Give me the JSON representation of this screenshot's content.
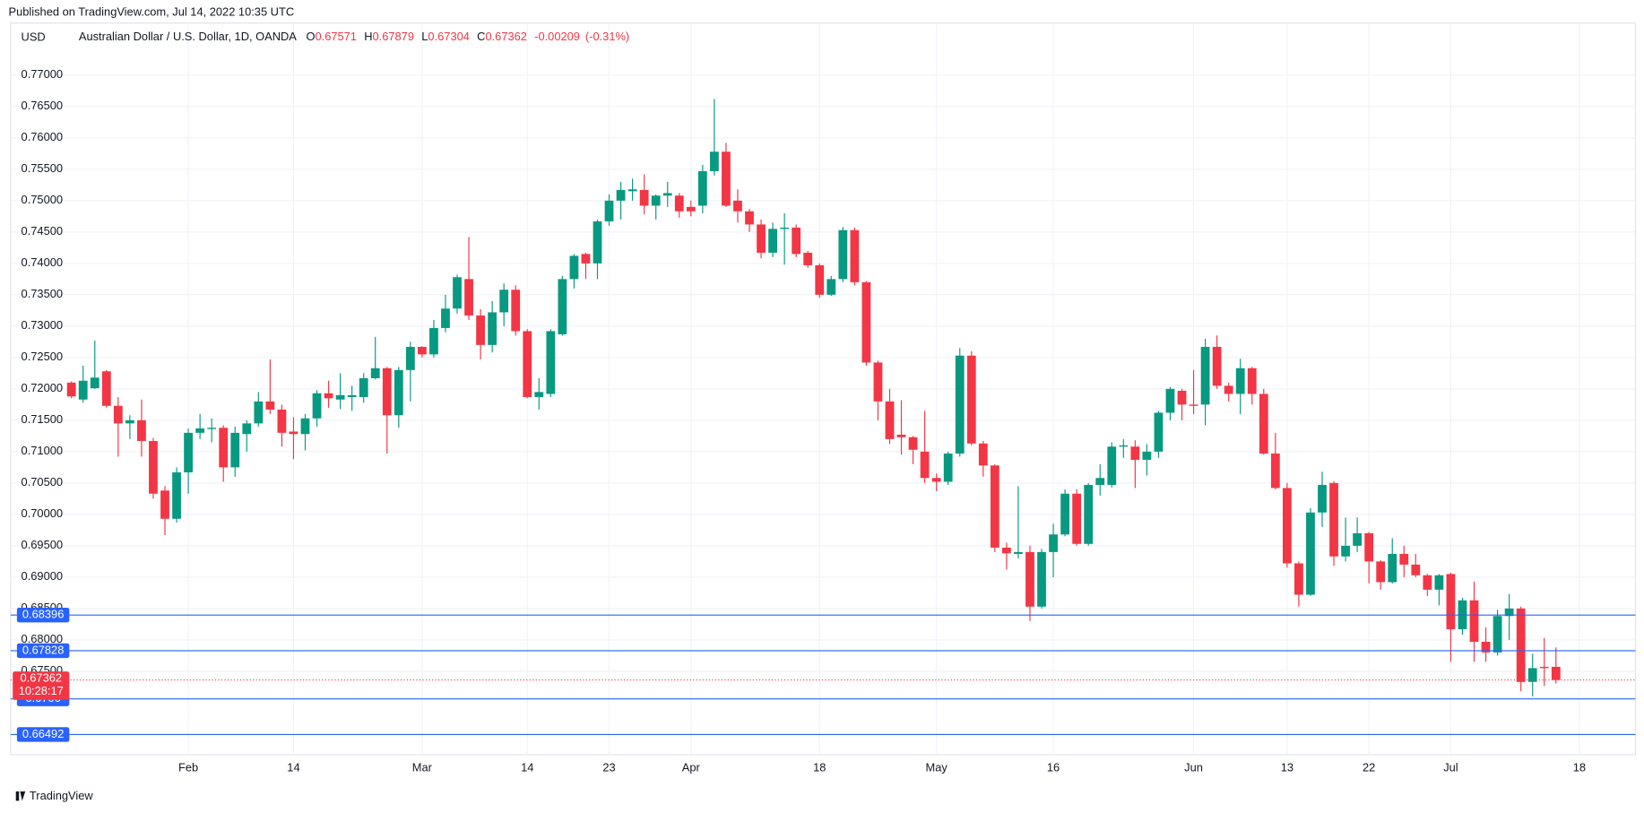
{
  "published": "Published on TradingView.com, Jul 14, 2022 10:35 UTC",
  "chart_data": {
    "type": "candlestick",
    "currency": "USD",
    "title": "Australian Dollar / U.S. Dollar, 1D, OANDA",
    "legend": {
      "open_label": "O",
      "high_label": "H",
      "low_label": "L",
      "close_label": "C",
      "change": "-0.00209",
      "change_pct": "(-0.31%)"
    },
    "countdown": "10:28:17",
    "up_color": "#089981",
    "down_color": "#f23645",
    "level_color": "#2962ff",
    "grid": true,
    "open": [
      0.721,
      0.7183,
      0.7201,
      0.7228,
      0.7173,
      0.7145,
      0.715,
      0.7117,
      0.7038,
      0.6993,
      0.7067,
      0.713,
      0.7136,
      0.7138,
      0.7075,
      0.7128,
      0.7145,
      0.718,
      0.7167,
      0.7132,
      0.7128,
      0.7153,
      0.7193,
      0.7183,
      0.7187,
      0.7187,
      0.7217,
      0.7233,
      0.7158,
      0.723,
      0.7267,
      0.7255,
      0.7297,
      0.7328,
      0.7375,
      0.7317,
      0.727,
      0.7322,
      0.7358,
      0.7292,
      0.7187,
      0.7192,
      0.7287,
      0.7375,
      0.7415,
      0.74,
      0.7467,
      0.75,
      0.7515,
      0.7517,
      0.7492,
      0.7508,
      0.7508,
      0.749,
      0.7492,
      0.7547,
      0.7578,
      0.75,
      0.7483,
      0.7462,
      0.7417,
      0.7455,
      0.7457,
      0.7417,
      0.7397,
      0.735,
      0.7375,
      0.7453,
      0.737,
      0.7242,
      0.718,
      0.7127,
      0.7123,
      0.71,
      0.7058,
      0.7052,
      0.7097,
      0.7253,
      0.7113,
      0.7078,
      0.6947,
      0.6937,
      0.694,
      0.6853,
      0.694,
      0.6968,
      0.7033,
      0.6953,
      0.7047,
      0.7047,
      0.7108,
      0.7108,
      0.7087,
      0.71,
      0.7162,
      0.7197,
      0.7175,
      0.7175,
      0.7267,
      0.7205,
      0.7192,
      0.7233,
      0.7192,
      0.7097,
      0.7042,
      0.6922,
      0.6872,
      0.7003,
      0.705,
      0.6933,
      0.695,
      0.697,
      0.6925,
      0.6892,
      0.6937,
      0.692,
      0.6903,
      0.688,
      0.6905,
      0.6817,
      0.6863,
      0.6797,
      0.678,
      0.6838,
      0.685,
      0.6733,
      0.6757,
      0.67571
    ],
    "high": [
      0.7212,
      0.7237,
      0.7277,
      0.723,
      0.7187,
      0.7158,
      0.7183,
      0.7122,
      0.7045,
      0.7075,
      0.7137,
      0.716,
      0.7153,
      0.7142,
      0.714,
      0.715,
      0.7195,
      0.7247,
      0.7175,
      0.7155,
      0.716,
      0.7198,
      0.7213,
      0.7225,
      0.7205,
      0.7225,
      0.7283,
      0.7235,
      0.7235,
      0.7275,
      0.7268,
      0.731,
      0.735,
      0.7382,
      0.7442,
      0.7327,
      0.734,
      0.7368,
      0.7365,
      0.7295,
      0.7217,
      0.7295,
      0.738,
      0.7415,
      0.7417,
      0.747,
      0.751,
      0.753,
      0.7535,
      0.7542,
      0.751,
      0.753,
      0.7512,
      0.75,
      0.7557,
      0.7662,
      0.7592,
      0.7518,
      0.7487,
      0.747,
      0.7465,
      0.748,
      0.7462,
      0.742,
      0.74,
      0.738,
      0.7458,
      0.7457,
      0.7372,
      0.7245,
      0.72,
      0.7182,
      0.7125,
      0.7165,
      0.7065,
      0.71,
      0.7265,
      0.726,
      0.7117,
      0.708,
      0.6955,
      0.7045,
      0.695,
      0.6945,
      0.6985,
      0.704,
      0.704,
      0.705,
      0.708,
      0.7115,
      0.712,
      0.7118,
      0.7112,
      0.7165,
      0.7203,
      0.72,
      0.723,
      0.728,
      0.7285,
      0.721,
      0.7248,
      0.7235,
      0.72,
      0.713,
      0.705,
      0.6925,
      0.701,
      0.7068,
      0.7053,
      0.6995,
      0.6995,
      0.6972,
      0.6927,
      0.6962,
      0.695,
      0.6937,
      0.6905,
      0.6905,
      0.6907,
      0.6867,
      0.6893,
      0.682,
      0.6848,
      0.6873,
      0.6853,
      0.6778,
      0.6803,
      0.67879
    ],
    "low": [
      0.7185,
      0.7178,
      0.72,
      0.717,
      0.7092,
      0.712,
      0.7092,
      0.7025,
      0.6967,
      0.6987,
      0.7033,
      0.712,
      0.7115,
      0.7052,
      0.706,
      0.71,
      0.714,
      0.716,
      0.7108,
      0.7088,
      0.7102,
      0.714,
      0.717,
      0.7168,
      0.7165,
      0.7178,
      0.7215,
      0.7097,
      0.7138,
      0.718,
      0.725,
      0.725,
      0.729,
      0.732,
      0.731,
      0.7247,
      0.7258,
      0.73,
      0.7285,
      0.7185,
      0.7167,
      0.7187,
      0.7285,
      0.736,
      0.7375,
      0.7375,
      0.746,
      0.747,
      0.75,
      0.7478,
      0.747,
      0.749,
      0.7473,
      0.7475,
      0.748,
      0.754,
      0.749,
      0.7465,
      0.745,
      0.7408,
      0.741,
      0.7398,
      0.741,
      0.7393,
      0.7345,
      0.7348,
      0.737,
      0.7365,
      0.7237,
      0.715,
      0.7112,
      0.7095,
      0.708,
      0.705,
      0.7037,
      0.7047,
      0.7092,
      0.711,
      0.706,
      0.694,
      0.6912,
      0.693,
      0.683,
      0.685,
      0.69,
      0.6965,
      0.695,
      0.695,
      0.703,
      0.7043,
      0.709,
      0.7042,
      0.7062,
      0.709,
      0.715,
      0.715,
      0.716,
      0.7142,
      0.72,
      0.718,
      0.716,
      0.7175,
      0.7095,
      0.704,
      0.6915,
      0.6853,
      0.687,
      0.698,
      0.6918,
      0.6925,
      0.694,
      0.689,
      0.688,
      0.689,
      0.69,
      0.69,
      0.687,
      0.6855,
      0.6765,
      0.6808,
      0.6765,
      0.6765,
      0.6775,
      0.68,
      0.6718,
      0.671,
      0.6727,
      0.67304
    ],
    "close": [
      0.7188,
      0.7213,
      0.7218,
      0.7173,
      0.7145,
      0.715,
      0.7117,
      0.7033,
      0.6993,
      0.7067,
      0.713,
      0.7137,
      0.7138,
      0.7075,
      0.713,
      0.7145,
      0.718,
      0.7167,
      0.713,
      0.7128,
      0.7153,
      0.7193,
      0.7185,
      0.719,
      0.719,
      0.7217,
      0.7233,
      0.7158,
      0.723,
      0.7267,
      0.7255,
      0.7297,
      0.7328,
      0.7378,
      0.7317,
      0.727,
      0.7322,
      0.7358,
      0.7292,
      0.7187,
      0.7195,
      0.7292,
      0.7375,
      0.7412,
      0.74,
      0.7467,
      0.75,
      0.7517,
      0.7518,
      0.7492,
      0.7508,
      0.7512,
      0.7483,
      0.7483,
      0.7547,
      0.7578,
      0.7492,
      0.7483,
      0.7462,
      0.7417,
      0.7455,
      0.7457,
      0.7415,
      0.7397,
      0.735,
      0.7375,
      0.7453,
      0.737,
      0.7242,
      0.718,
      0.712,
      0.7123,
      0.7103,
      0.7058,
      0.7052,
      0.7097,
      0.7253,
      0.7113,
      0.7078,
      0.6947,
      0.6938,
      0.694,
      0.6853,
      0.694,
      0.6968,
      0.7033,
      0.6953,
      0.7047,
      0.7058,
      0.7108,
      0.711,
      0.7087,
      0.71,
      0.7162,
      0.72,
      0.7175,
      0.7173,
      0.7267,
      0.7205,
      0.7192,
      0.7233,
      0.7192,
      0.7097,
      0.7042,
      0.6922,
      0.6872,
      0.7003,
      0.7047,
      0.6933,
      0.695,
      0.697,
      0.6925,
      0.6892,
      0.6937,
      0.692,
      0.6903,
      0.688,
      0.6903,
      0.6817,
      0.6863,
      0.6797,
      0.678,
      0.6838,
      0.685,
      0.6733,
      0.6755,
      0.6755,
      0.67362
    ],
    "levels": [
      0.68396,
      0.67828,
      0.6706,
      0.66492
    ],
    "xlim": [
      -5.2,
      133.8
    ],
    "xticks": [
      {
        "value": 10,
        "label": "Feb"
      },
      {
        "value": 19,
        "label": "14"
      },
      {
        "value": 30,
        "label": "Mar"
      },
      {
        "value": 39,
        "label": "14"
      },
      {
        "value": 46,
        "label": "23"
      },
      {
        "value": 53,
        "label": "Apr"
      },
      {
        "value": 64,
        "label": "18"
      },
      {
        "value": 74,
        "label": "May"
      },
      {
        "value": 84,
        "label": "16"
      },
      {
        "value": 96,
        "label": "Jun"
      },
      {
        "value": 104,
        "label": "13"
      },
      {
        "value": 111,
        "label": "22"
      },
      {
        "value": 118,
        "label": "Jul"
      },
      {
        "value": 129,
        "label": "18"
      }
    ],
    "ylim": [
      0.6617,
      0.7783
    ],
    "yticks": [
      {
        "value": 0.77,
        "label": "0.77000"
      },
      {
        "value": 0.765,
        "label": "0.76500"
      },
      {
        "value": 0.76,
        "label": "0.76000"
      },
      {
        "value": 0.755,
        "label": "0.75500"
      },
      {
        "value": 0.75,
        "label": "0.75000"
      },
      {
        "value": 0.745,
        "label": "0.74500"
      },
      {
        "value": 0.74,
        "label": "0.74000"
      },
      {
        "value": 0.735,
        "label": "0.73500"
      },
      {
        "value": 0.73,
        "label": "0.73000"
      },
      {
        "value": 0.725,
        "label": "0.72500"
      },
      {
        "value": 0.72,
        "label": "0.72000"
      },
      {
        "value": 0.715,
        "label": "0.71500"
      },
      {
        "value": 0.71,
        "label": "0.71000"
      },
      {
        "value": 0.705,
        "label": "0.70500"
      },
      {
        "value": 0.7,
        "label": "0.70000"
      },
      {
        "value": 0.695,
        "label": "0.69500"
      },
      {
        "value": 0.69,
        "label": "0.69000"
      },
      {
        "value": 0.685,
        "label": "0.68500"
      },
      {
        "value": 0.68,
        "label": "0.68000"
      },
      {
        "value": 0.675,
        "label": "0.67500"
      }
    ]
  },
  "footer": "TradingView"
}
